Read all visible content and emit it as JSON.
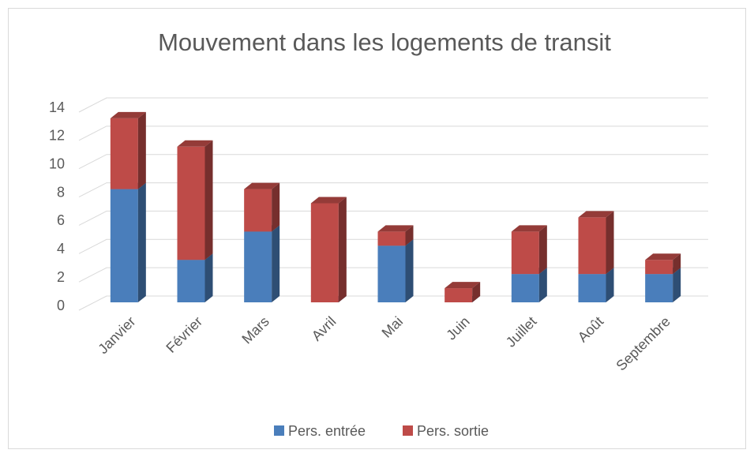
{
  "chart_data": {
    "type": "bar",
    "stacked": true,
    "title": "Mouvement dans les logements de transit",
    "categories": [
      "Janvier",
      "Février",
      "Mars",
      "Avril",
      "Mai",
      "Juin",
      "Juillet",
      "Août",
      "Septembre"
    ],
    "series": [
      {
        "name": "Pers. entrée",
        "color": "#4a7ebb",
        "values": [
          8,
          3,
          5,
          0,
          4,
          0,
          2,
          2,
          2
        ]
      },
      {
        "name": "Pers. sortie",
        "color": "#be4b48",
        "values": [
          5,
          8,
          3,
          7,
          1,
          1,
          3,
          4,
          1
        ]
      }
    ],
    "ylim": [
      0,
      14
    ],
    "yticks": [
      0,
      2,
      4,
      6,
      8,
      10,
      12,
      14
    ],
    "grid": true,
    "legend": "bottom"
  }
}
